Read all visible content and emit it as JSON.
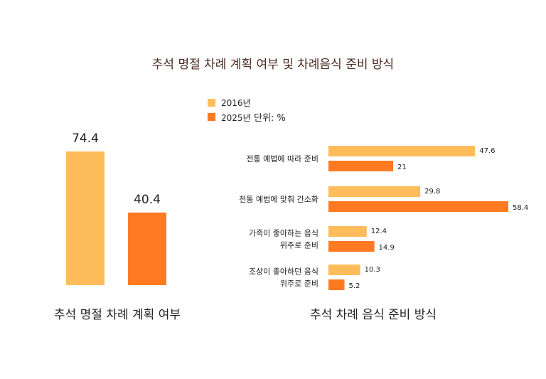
{
  "title": "추석 명절 차례 계획 여부 및 차례음식 준비 방식",
  "legend": {
    "items": [
      "2016년",
      "2025년"
    ],
    "unit": "단위: %"
  },
  "colors": {
    "2016": "#FFBC5A",
    "2025": "#FF7A21"
  },
  "chart_data": [
    {
      "type": "bar",
      "title": "추석 명절 차례 계획 여부",
      "categories": [
        "2016년",
        "2025년"
      ],
      "values": [
        74.4,
        40.4
      ],
      "data_labels": [
        "74.4",
        "40.4"
      ]
    },
    {
      "type": "bar",
      "orientation": "horizontal",
      "title": "추석 차례 음식 준비 방식",
      "categories": [
        "전통 예법에 따라 준비",
        "전통 예법에 맞춰 간소화",
        "가족이 좋아하는 음식\n위주로 준비",
        "조상이 좋아하던 음식\n위주로 준비"
      ],
      "series": [
        {
          "name": "2016년",
          "values": [
            47.6,
            29.8,
            12.4,
            10.3
          ]
        },
        {
          "name": "2025년",
          "values": [
            21,
            58.4,
            14.9,
            5.2
          ]
        }
      ]
    }
  ]
}
